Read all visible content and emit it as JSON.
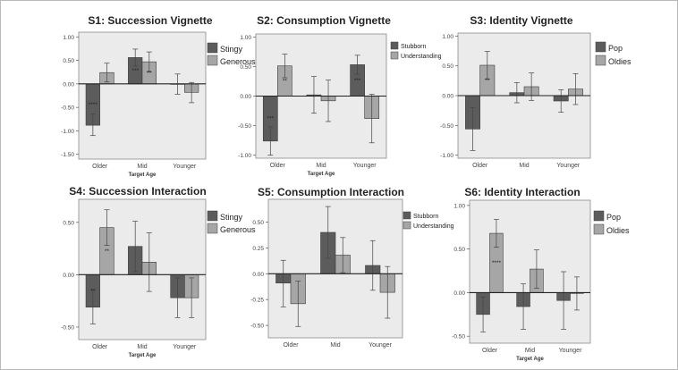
{
  "chart_data": [
    {
      "type": "bar",
      "title": "S1: Succession Vignette",
      "xlabel": "Target Age",
      "categories": [
        "Older",
        "Mid",
        "Younger"
      ],
      "ylim": [
        -1.6,
        1.1
      ],
      "yticks": [
        "1.00",
        "0.50",
        "0.00",
        "-0.50",
        "-1.00",
        "-1.50"
      ],
      "ytick_values": [
        1.0,
        0.5,
        0.0,
        -0.5,
        -1.0,
        -1.5
      ],
      "legend_position": "right",
      "series": [
        {
          "name": "Stingy",
          "color": "#5c5c5c",
          "values": [
            -0.88,
            0.56,
            -0.01
          ],
          "error": [
            [
              -1.1,
              -0.64
            ],
            [
              0.38,
              0.74
            ],
            [
              -0.22,
              0.21
            ]
          ],
          "labels": [
            "****",
            "***",
            ""
          ]
        },
        {
          "name": "Generous",
          "color": "#a6a6a6",
          "values": [
            0.24,
            0.47,
            -0.18
          ],
          "error": [
            [
              0.04,
              0.44
            ],
            [
              0.25,
              0.68
            ],
            [
              -0.4,
              0.03
            ]
          ],
          "labels": [
            "",
            "**",
            ""
          ]
        }
      ]
    },
    {
      "type": "bar",
      "title": "S2: Consumption Vignette",
      "xlabel": "Target Age",
      "categories": [
        "Older",
        "Mid",
        "Younger"
      ],
      "ylim": [
        -1.05,
        1.05
      ],
      "yticks": [
        "1.00",
        "0.50",
        "0.00",
        "-0.50",
        "-1.00"
      ],
      "ytick_values": [
        1.0,
        0.5,
        0.0,
        -0.5,
        -1.0
      ],
      "legend_position": "right",
      "series": [
        {
          "name": "Stubborn",
          "color": "#5c5c5c",
          "values": [
            -0.76,
            0.02,
            0.53
          ],
          "error": [
            [
              -1.0,
              -0.52
            ],
            [
              -0.29,
              0.33
            ],
            [
              0.37,
              0.69
            ]
          ],
          "labels": [
            "***",
            "",
            "***"
          ]
        },
        {
          "name": "Understanding",
          "color": "#a6a6a6",
          "values": [
            0.51,
            -0.08,
            -0.38
          ],
          "error": [
            [
              0.31,
              0.71
            ],
            [
              -0.43,
              0.27
            ],
            [
              -0.79,
              0.03
            ]
          ],
          "labels": [
            "**",
            "",
            ""
          ]
        }
      ]
    },
    {
      "type": "bar",
      "title": "S3: Identity Vignette",
      "xlabel": "",
      "categories": [
        "Older",
        "Mid",
        "Younger"
      ],
      "ylim": [
        -1.05,
        1.05
      ],
      "yticks": [
        "1.00",
        "0.50",
        "0.00",
        "-0.50",
        "-1.00"
      ],
      "ytick_values": [
        1.0,
        0.5,
        0.0,
        -0.5,
        -1.0
      ],
      "legend_position": "right",
      "series": [
        {
          "name": "Pop",
          "color": "#5c5c5c",
          "values": [
            -0.56,
            0.05,
            -0.09
          ],
          "error": [
            [
              -0.92,
              -0.2
            ],
            [
              -0.12,
              0.22
            ],
            [
              -0.28,
              0.1
            ]
          ],
          "labels": [
            "",
            "",
            ""
          ]
        },
        {
          "name": "Oldies",
          "color": "#a6a6a6",
          "values": [
            0.51,
            0.15,
            0.11
          ],
          "error": [
            [
              0.28,
              0.74
            ],
            [
              -0.08,
              0.38
            ],
            [
              -0.15,
              0.37
            ]
          ],
          "labels": [
            "**",
            "",
            ""
          ]
        }
      ]
    },
    {
      "type": "bar",
      "title": "S4: Succession Interaction",
      "xlabel": "Target Age",
      "categories": [
        "Older",
        "Mid",
        "Younger"
      ],
      "ylim": [
        -0.62,
        0.72
      ],
      "yticks": [
        "0.50",
        "0.00",
        "-0.50"
      ],
      "ytick_values": [
        0.5,
        0.0,
        -0.5
      ],
      "legend_position": "right",
      "series": [
        {
          "name": "Stingy",
          "color": "#5c5c5c",
          "values": [
            -0.31,
            0.27,
            -0.22
          ],
          "error": [
            [
              -0.47,
              -0.15
            ],
            [
              0.03,
              0.51
            ],
            [
              -0.41,
              -0.03
            ]
          ],
          "labels": [
            "**",
            "",
            ""
          ]
        },
        {
          "name": "Generous",
          "color": "#a6a6a6",
          "values": [
            0.45,
            0.12,
            -0.22
          ],
          "error": [
            [
              0.28,
              0.62
            ],
            [
              -0.16,
              0.4
            ],
            [
              -0.41,
              -0.03
            ]
          ],
          "labels": [
            "**",
            "",
            ""
          ]
        }
      ]
    },
    {
      "type": "bar",
      "title": "S5: Consumption Interaction",
      "xlabel": "",
      "categories": [
        "Older",
        "Mid",
        "Younger"
      ],
      "ylim": [
        -0.62,
        0.72
      ],
      "yticks": [
        "0.50",
        "0.25",
        "0.00",
        "-0.25",
        "-0.50"
      ],
      "ytick_values": [
        0.5,
        0.25,
        0.0,
        -0.25,
        -0.5
      ],
      "legend_position": "right",
      "series": [
        {
          "name": "Stubborn",
          "color": "#5c5c5c",
          "values": [
            -0.09,
            0.4,
            0.08
          ],
          "error": [
            [
              -0.32,
              0.13
            ],
            [
              0.15,
              0.65
            ],
            [
              -0.16,
              0.32
            ]
          ],
          "labels": [
            "",
            "",
            ""
          ]
        },
        {
          "name": "Understanding",
          "color": "#a6a6a6",
          "values": [
            -0.29,
            0.18,
            -0.18
          ],
          "error": [
            [
              -0.51,
              -0.07
            ],
            [
              0.01,
              0.35
            ],
            [
              -0.43,
              0.07
            ]
          ],
          "labels": [
            "",
            "",
            ""
          ]
        }
      ]
    },
    {
      "type": "bar",
      "title": "S6: Identity Interaction",
      "xlabel": "Target Age",
      "categories": [
        "Older",
        "Mid",
        "Younger"
      ],
      "ylim": [
        -0.58,
        1.06
      ],
      "yticks": [
        "1.00",
        "0.50",
        "0.00",
        "-0.50"
      ],
      "ytick_values": [
        1.0,
        0.5,
        0.0,
        -0.5
      ],
      "legend_position": "right",
      "series": [
        {
          "name": "Pop",
          "color": "#5c5c5c",
          "values": [
            -0.25,
            -0.16,
            -0.09
          ],
          "error": [
            [
              -0.45,
              -0.05
            ],
            [
              -0.42,
              0.1
            ],
            [
              -0.42,
              0.24
            ]
          ],
          "labels": [
            "",
            "",
            ""
          ]
        },
        {
          "name": "Oldies",
          "color": "#a6a6a6",
          "values": [
            0.68,
            0.27,
            -0.01
          ],
          "error": [
            [
              0.52,
              0.84
            ],
            [
              0.05,
              0.49
            ],
            [
              -0.2,
              0.18
            ]
          ],
          "labels": [
            "****",
            "",
            ""
          ]
        }
      ]
    }
  ]
}
